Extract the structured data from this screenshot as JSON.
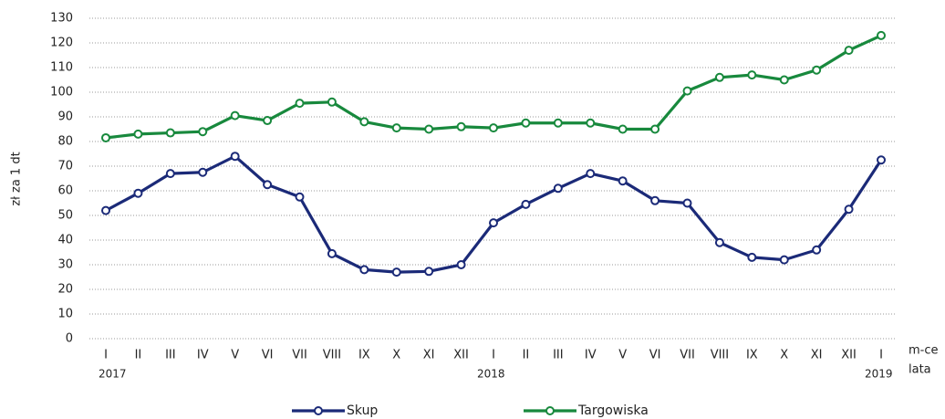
{
  "chart_data": {
    "type": "line",
    "y_label": "zł za 1 dt",
    "x_label": "m-ce",
    "year_axis_label": "lata",
    "categories": [
      "I",
      "II",
      "III",
      "IV",
      "V",
      "VI",
      "VII",
      "VIII",
      "IX",
      "X",
      "XI",
      "XII",
      "I",
      "II",
      "III",
      "IV",
      "V",
      "VI",
      "VII",
      "VIII",
      "IX",
      "X",
      "XI",
      "XII",
      "I"
    ],
    "years": [
      "2017",
      null,
      null,
      null,
      null,
      null,
      null,
      null,
      null,
      null,
      null,
      null,
      "2018",
      null,
      null,
      null,
      null,
      null,
      null,
      null,
      null,
      null,
      null,
      null,
      "2019"
    ],
    "series": [
      {
        "name": "Skup",
        "color": "#1b2a78",
        "values": [
          52,
          59,
          67,
          67.5,
          74,
          62.5,
          57.5,
          34.5,
          28,
          27,
          27.3,
          30,
          47,
          54.5,
          61,
          67,
          64,
          56,
          55,
          39,
          33,
          32,
          36,
          52.5,
          72.5
        ]
      },
      {
        "name": "Targowiska",
        "color": "#18893d",
        "values": [
          81.5,
          83,
          83.5,
          84,
          90.5,
          88.5,
          95.5,
          96,
          88,
          85.5,
          85,
          86,
          85.5,
          87.5,
          87.5,
          87.5,
          85,
          85,
          100.5,
          106,
          107,
          105,
          109,
          117,
          123
        ]
      }
    ],
    "ylim": [
      0,
      130
    ],
    "yticks": [
      0,
      10,
      20,
      30,
      40,
      50,
      60,
      70,
      80,
      90,
      100,
      110,
      120,
      130
    ],
    "grid": true
  }
}
